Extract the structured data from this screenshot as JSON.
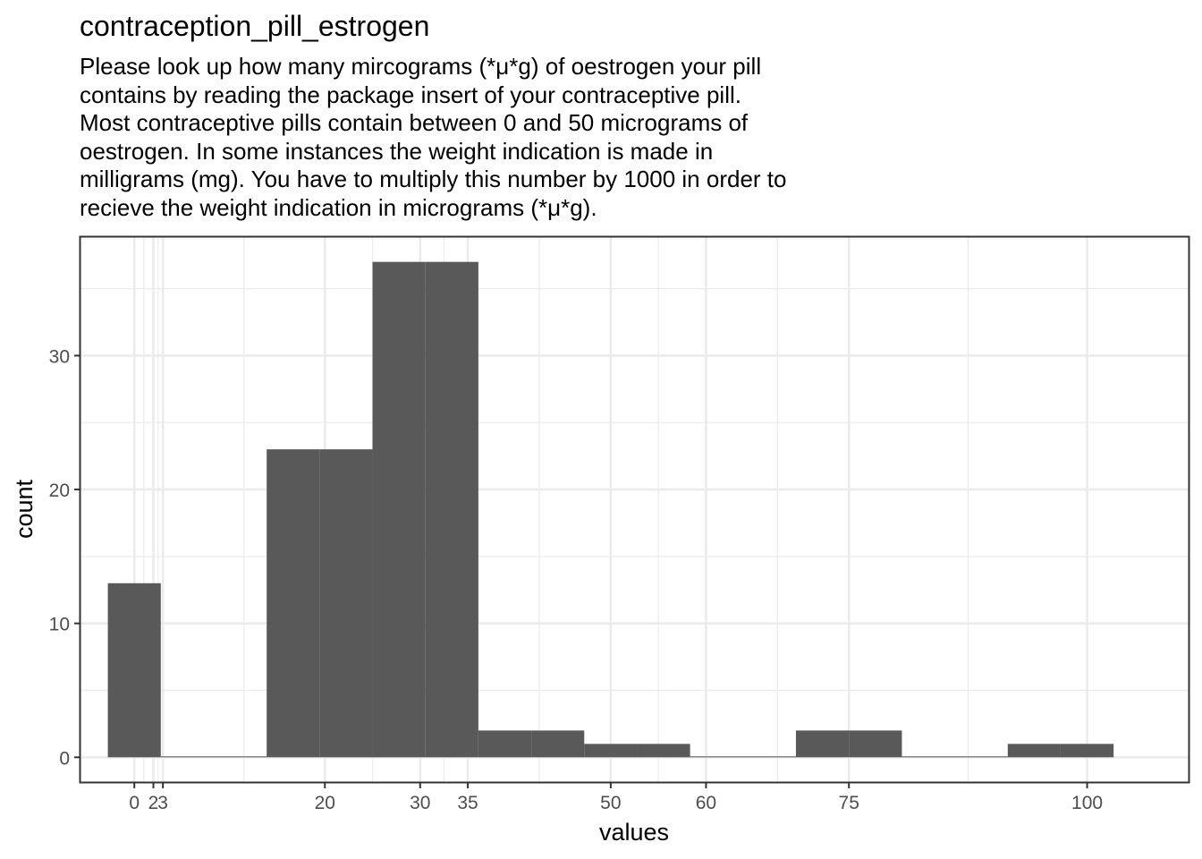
{
  "chart_data": {
    "type": "bar",
    "title": "contraception_pill_estrogen",
    "subtitle": "Please look up how many mircograms (*μ*g) of oestrogen your pill\ncontains by reading the package insert of your contraceptive pill.\nMost contraceptive pills contain between 0 and 50 micrograms of\noestrogen. In some instances the weight indication is made in\nmilligrams (mg). You have to multiply this number by 1000 in order to\nrecieve the weight indication in micrograms (*μ*g).",
    "xlabel": "values",
    "ylabel": "count",
    "xlim": [
      -5.65,
      110.65
    ],
    "ylim": [
      -1.85,
      38.85
    ],
    "x_ticks": [
      0,
      2,
      3,
      20,
      30,
      35,
      50,
      60,
      75,
      100
    ],
    "x_tick_labels": [
      "0",
      "2",
      "3",
      "20",
      "30",
      "35",
      "50",
      "60",
      "75",
      "100"
    ],
    "y_ticks": [
      0,
      10,
      20,
      30
    ],
    "y_tick_labels": [
      "0",
      "10",
      "20",
      "30"
    ],
    "y_minor_ticks": [
      5,
      15,
      25,
      35
    ],
    "bins": [
      {
        "x0": -2.78,
        "x1": 2.78,
        "count": 13
      },
      {
        "x0": 2.78,
        "x1": 8.33,
        "count": 0
      },
      {
        "x0": 8.33,
        "x1": 13.89,
        "count": 0
      },
      {
        "x0": 13.89,
        "x1": 19.44,
        "count": 23
      },
      {
        "x0": 19.44,
        "x1": 25.0,
        "count": 23
      },
      {
        "x0": 25.0,
        "x1": 30.56,
        "count": 37
      },
      {
        "x0": 30.56,
        "x1": 36.11,
        "count": 37
      },
      {
        "x0": 36.11,
        "x1": 41.67,
        "count": 2
      },
      {
        "x0": 41.67,
        "x1": 47.22,
        "count": 2
      },
      {
        "x0": 47.22,
        "x1": 52.78,
        "count": 1
      },
      {
        "x0": 52.78,
        "x1": 58.33,
        "count": 1
      },
      {
        "x0": 58.33,
        "x1": 63.89,
        "count": 0
      },
      {
        "x0": 63.89,
        "x1": 69.44,
        "count": 0
      },
      {
        "x0": 69.44,
        "x1": 75.0,
        "count": 2
      },
      {
        "x0": 75.0,
        "x1": 80.56,
        "count": 2
      },
      {
        "x0": 80.56,
        "x1": 86.11,
        "count": 0
      },
      {
        "x0": 86.11,
        "x1": 91.67,
        "count": 0
      },
      {
        "x0": 91.67,
        "x1": 97.22,
        "count": 1
      },
      {
        "x0": 97.22,
        "x1": 102.78,
        "count": 1
      }
    ],
    "bar_color": "#595959",
    "grid": true,
    "legend": "none"
  }
}
